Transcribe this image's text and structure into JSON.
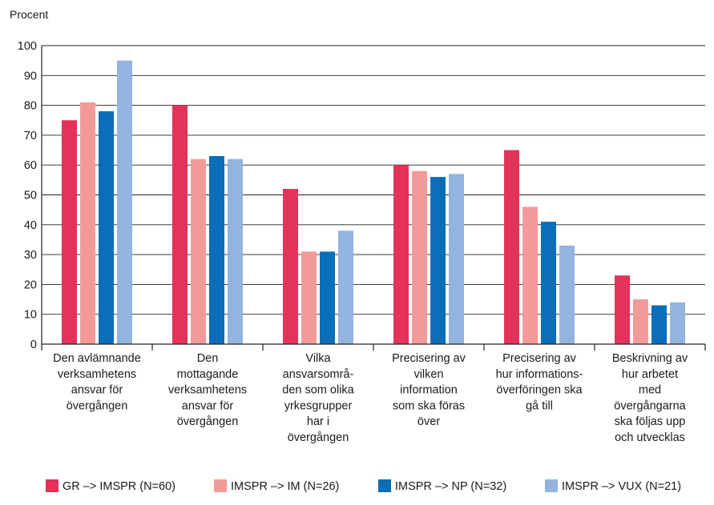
{
  "chart_data": {
    "type": "bar",
    "unit_label": "Procent",
    "ylim": [
      0,
      100
    ],
    "yticks": [
      0,
      10,
      20,
      30,
      40,
      50,
      60,
      70,
      80,
      90,
      100
    ],
    "grid": true,
    "legend_position": "bottom",
    "categories": [
      [
        "Den avlämnande",
        "verksamhetens",
        "ansvar för",
        "övergången"
      ],
      [
        "Den",
        "mottagande",
        "verksamhetens",
        "ansvar för",
        "övergången"
      ],
      [
        "Vilka",
        "ansvarsområ-",
        "den som olika",
        "yrkesgrupper",
        "har i",
        "övergången"
      ],
      [
        "Precisering av",
        "vilken",
        "information",
        "som ska föras",
        "över"
      ],
      [
        "Precisering av",
        "hur informations-",
        "överföringen ska",
        "gå till"
      ],
      [
        "Beskrivning av",
        "hur arbetet",
        "med",
        "övergångarna",
        "ska följas upp",
        "och utvecklas"
      ]
    ],
    "series": [
      {
        "name": "GR –> IMSPR (N=60)",
        "color": "#e4325a",
        "values": [
          75,
          80,
          52,
          60,
          65,
          23
        ]
      },
      {
        "name": "IMSPR –> IM (N=26)",
        "color": "#f29a98",
        "values": [
          81,
          62,
          31,
          58,
          46,
          15
        ]
      },
      {
        "name": "IMSPR –> NP (N=32)",
        "color": "#0a6eb8",
        "values": [
          78,
          63,
          31,
          56,
          41,
          13
        ]
      },
      {
        "name": "IMSPR –> VUX (N=21)",
        "color": "#92b4de",
        "values": [
          95,
          62,
          38,
          57,
          33,
          14
        ]
      }
    ]
  }
}
